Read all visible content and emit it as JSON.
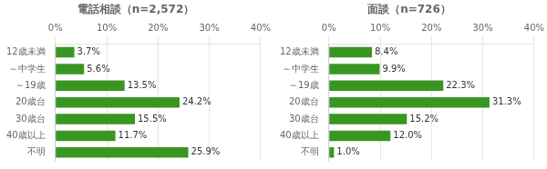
{
  "chart_data": [
    {
      "type": "bar",
      "orientation": "horizontal",
      "title": "電話相談（n=2,572）",
      "categories": [
        "12歳未満",
        "～中学生",
        "～19歳",
        "20歳台",
        "30歳台",
        "40歳以上",
        "不明"
      ],
      "values": [
        3.7,
        5.6,
        13.5,
        24.2,
        15.5,
        11.7,
        25.9
      ],
      "value_labels": [
        "3.7%",
        "5.6%",
        "13.5%",
        "24.2%",
        "15.5%",
        "11.7%",
        "25.9%"
      ],
      "data_labels": true,
      "color": "#3a9622",
      "xlim": [
        0,
        40
      ],
      "xticks": [
        {
          "value": 0,
          "label": "0%"
        },
        {
          "value": 10,
          "label": "10%"
        },
        {
          "value": 20,
          "label": "20%"
        },
        {
          "value": 30,
          "label": "30%"
        },
        {
          "value": 40,
          "label": "40%"
        }
      ],
      "grid": true
    },
    {
      "type": "bar",
      "orientation": "horizontal",
      "title": "面談（n=726）",
      "categories": [
        "12歳未満",
        "～中学生",
        "～19歳",
        "20歳台",
        "30歳台",
        "40歳以上",
        "不明"
      ],
      "values": [
        8.4,
        9.9,
        22.3,
        31.3,
        15.2,
        12.0,
        1.0
      ],
      "value_labels": [
        "8.4%",
        "9.9%",
        "22.3%",
        "31.3%",
        "15.2%",
        "12.0%",
        "1.0%"
      ],
      "data_labels": true,
      "color": "#3a9622",
      "xlim": [
        0,
        40
      ],
      "xticks": [
        {
          "value": 0,
          "label": "0%"
        },
        {
          "value": 10,
          "label": "10%"
        },
        {
          "value": 20,
          "label": "20%"
        },
        {
          "value": 30,
          "label": "30%"
        },
        {
          "value": 40,
          "label": "40%"
        }
      ],
      "grid": true
    }
  ]
}
